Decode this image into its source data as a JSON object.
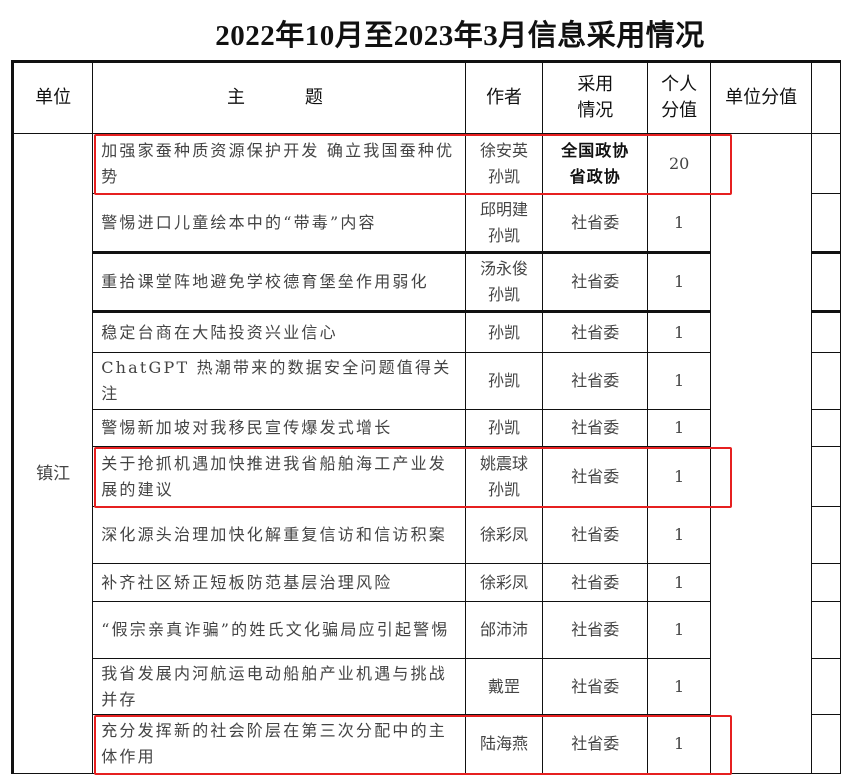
{
  "title": "2022年10月至2023年3月信息采用情况",
  "headers": {
    "unit": "单位",
    "topic": "主　　题",
    "author": "作者",
    "adoption": "采用情况",
    "personal_score": "个人分值",
    "unit_score": "单位分值"
  },
  "unit_name": "镇江",
  "highlight_color": "#e62020",
  "rows": [
    {
      "topic": "加强家蚕种质资源保护开发 确立我国蚕种优势",
      "author": "徐安英 孙凯",
      "adoption": "全国政协 省政协",
      "score": "20",
      "bold": true,
      "highlighted": true
    },
    {
      "topic": "警惕进口儿童绘本中的“带毒”内容",
      "author": "邱明建 孙凯",
      "adoption": "社省委",
      "score": "1"
    },
    {
      "topic": "重拾课堂阵地避免学校德育堡垒作用弱化",
      "author": "汤永俊 孙凯",
      "adoption": "社省委",
      "score": "1"
    },
    {
      "topic": "稳定台商在大陆投资兴业信心",
      "author": "孙凯",
      "adoption": "社省委",
      "score": "1"
    },
    {
      "topic": "ChatGPT 热潮带来的数据安全问题值得关注",
      "author": "孙凯",
      "adoption": "社省委",
      "score": "1"
    },
    {
      "topic": "警惕新加坡对我移民宣传爆发式增长",
      "author": "孙凯",
      "adoption": "社省委",
      "score": "1"
    },
    {
      "topic": "关于抢抓机遇加快推进我省船舶海工产业发展的建议",
      "author": "姚震球 孙凯",
      "adoption": "社省委",
      "score": "1",
      "highlighted": true
    },
    {
      "topic": "深化源头治理加快化解重复信访和信访积案",
      "author": "徐彩凤",
      "adoption": "社省委",
      "score": "1"
    },
    {
      "topic": "补齐社区矫正短板防范基层治理风险",
      "author": "徐彩凤",
      "adoption": "社省委",
      "score": "1"
    },
    {
      "topic": "“假宗亲真诈骗”的姓氏文化骗局应引起警惕",
      "author": "邰沛沛",
      "adoption": "社省委",
      "score": "1"
    },
    {
      "topic": "我省发展内河航运电动船舶产业机遇与挑战并存",
      "author": "戴罡",
      "adoption": "社省委",
      "score": "1"
    },
    {
      "topic": "充分发挥新的社会阶层在第三次分配中的主体作用",
      "author": "陆海燕",
      "adoption": "社省委",
      "score": "1",
      "highlighted": true
    }
  ]
}
